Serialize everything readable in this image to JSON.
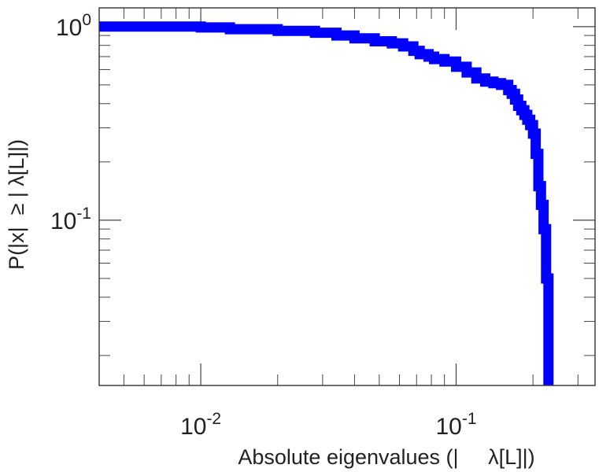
{
  "chart_data": {
    "type": "line",
    "title": "",
    "xlabel": "Absolute eigenvalues (|     λ[L]|)",
    "ylabel": "P(|x|  ≥ | λ[L]|)",
    "x_scale": "log",
    "y_scale": "log",
    "xlim": [
      0.004,
      0.35
    ],
    "ylim": [
      0.014,
      1.25
    ],
    "grid": false,
    "line_style": "step",
    "x_ticks": [
      {
        "value": 0.01,
        "base": "10",
        "exp": "-2"
      },
      {
        "value": 0.1,
        "base": "10",
        "exp": "-1"
      }
    ],
    "y_ticks": [
      {
        "value": 0.1,
        "base": "10",
        "exp": "-1"
      },
      {
        "value": 1,
        "base": "10",
        "exp": "0"
      }
    ],
    "series": [
      {
        "color": "#0000ff",
        "x": [
          0.004,
          0.0065,
          0.01,
          0.013,
          0.02,
          0.028,
          0.034,
          0.04,
          0.048,
          0.056,
          0.062,
          0.068,
          0.072,
          0.078,
          0.082,
          0.088,
          0.09,
          0.1,
          0.11,
          0.12,
          0.13,
          0.14,
          0.15,
          0.16,
          0.165,
          0.17,
          0.175,
          0.18,
          0.185,
          0.19,
          0.195,
          0.2,
          0.205,
          0.21,
          0.215,
          0.22,
          0.225,
          0.23
        ],
        "y": [
          1.0,
          1.0,
          0.99,
          0.97,
          0.95,
          0.93,
          0.9,
          0.87,
          0.84,
          0.82,
          0.79,
          0.75,
          0.72,
          0.7,
          0.68,
          0.68,
          0.66,
          0.62,
          0.58,
          0.54,
          0.52,
          0.51,
          0.5,
          0.47,
          0.45,
          0.42,
          0.39,
          0.37,
          0.35,
          0.33,
          0.31,
          0.28,
          0.22,
          0.15,
          0.12,
          0.09,
          0.05,
          0.02
        ]
      }
    ]
  }
}
